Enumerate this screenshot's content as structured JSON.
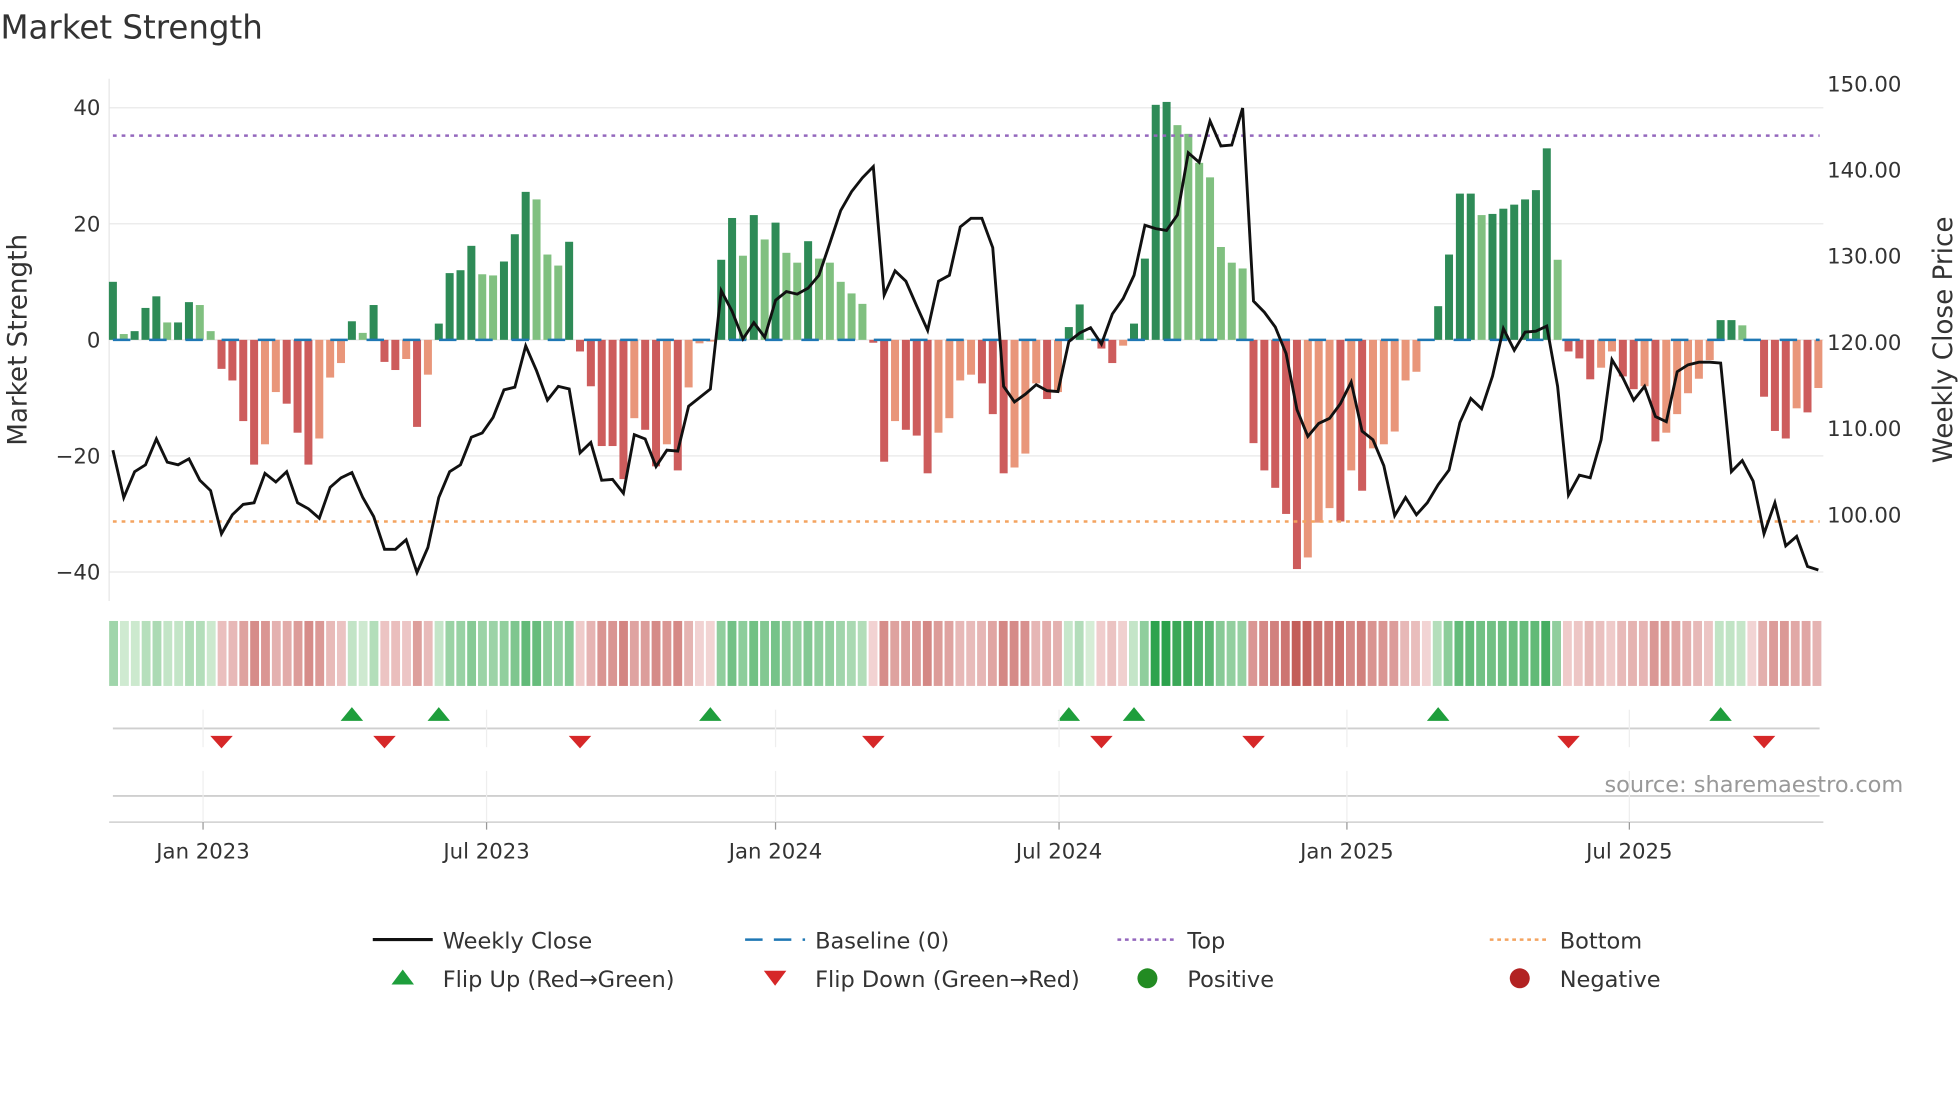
{
  "chart_data": {
    "type": "bar",
    "title": "Market Strength",
    "ylabel": "Market Strength",
    "y2label": "Weekly Close Price",
    "ylim": [
      -45,
      45
    ],
    "y2lim": [
      90,
      150.6
    ],
    "yticks": [
      40,
      20,
      0,
      -20,
      -40
    ],
    "ytick_labels": [
      "40",
      "20",
      "0",
      "−20",
      "−40"
    ],
    "y2ticks": [
      150,
      140,
      130,
      120,
      110,
      100
    ],
    "y2tick_labels": [
      "150.00",
      "140.00",
      "130.00",
      "120.00",
      "110.00",
      "100.00"
    ],
    "x_unit": "week index",
    "xticks": [
      8.3,
      34.4,
      61.0,
      87.1,
      113.6,
      139.6
    ],
    "xtick_labels": [
      "Jan 2023",
      "Jul 2023",
      "Jan 2024",
      "Jul 2024",
      "Jan 2025",
      "Jul 2025"
    ],
    "top_level": 35.2,
    "bottom_level": -31.3,
    "baseline": 0,
    "strength": [
      10,
      1,
      1.5,
      5.5,
      7.5,
      3,
      3,
      6.5,
      6,
      1.5,
      -5,
      -7,
      -14,
      -21.5,
      -18,
      -9,
      -11,
      -16,
      -21.5,
      -17,
      -6.5,
      -4,
      3.2,
      1.2,
      6,
      -3.8,
      -5.2,
      -3.3,
      -15,
      -6,
      2.8,
      11.5,
      12,
      16.2,
      11.3,
      11.1,
      13.5,
      18.2,
      25.5,
      24.2,
      14.7,
      12.8,
      16.9,
      -2,
      -8,
      -18.3,
      -18.3,
      -24,
      -13.5,
      -15.5,
      -21.8,
      -18,
      -22.5,
      -8.2,
      -0.6,
      -0.3,
      13.8,
      21,
      14.5,
      21.5,
      17.3,
      20.2,
      15,
      13.3,
      17,
      14,
      13.3,
      10,
      8,
      6.2,
      -0.5,
      -21,
      -14,
      -15.5,
      -16.5,
      -23,
      -16,
      -13.5,
      -7,
      -6,
      -7.5,
      -12.8,
      -23,
      -22,
      -19.6,
      -7.5,
      -10.2,
      -9,
      2.2,
      6.1,
      0.2,
      -1.5,
      -4,
      -1,
      2.8,
      14,
      40.5,
      41,
      37,
      35.5,
      30.5,
      28,
      16,
      13.3,
      12.3,
      -17.8,
      -22.5,
      -25.5,
      -30,
      -39.5,
      -37.5,
      -31.5,
      -29,
      -31.3,
      -22.5,
      -26,
      -18.7,
      -18,
      -15.8,
      -7,
      -5.5,
      -0.2,
      5.8,
      14.7,
      25.2,
      25.2,
      21.5,
      21.7,
      22.6,
      23.3,
      24.2,
      25.8,
      33,
      13.8,
      -2,
      -3.2,
      -6.8,
      -4.8,
      -2,
      -6.3,
      -8.5,
      -8,
      -17.5,
      -16,
      -12.8,
      -9.2,
      -6.7,
      -3.5,
      3.4,
      3.4,
      2.5,
      -0.2,
      -9.8,
      -15.7,
      -17,
      -11.8,
      -12.5,
      -8.3
    ],
    "weekly_close": [
      107.5,
      102,
      105,
      105.8,
      108.8,
      106.1,
      105.8,
      106.5,
      104,
      102.8,
      97.8,
      100,
      101.2,
      101.4,
      104.8,
      103.8,
      105,
      101.4,
      100.7,
      99.6,
      103.2,
      104.3,
      104.9,
      102,
      99.8,
      96,
      96,
      97.1,
      93.3,
      96.2,
      102,
      105,
      105.8,
      109,
      109.5,
      111.3,
      114.5,
      114.8,
      119.6,
      116.7,
      113.3,
      114.9,
      114.6,
      107.2,
      108.4,
      104,
      104.1,
      102.5,
      109.3,
      108.8,
      105.6,
      107.5,
      107.4,
      112.6,
      113.6,
      114.6,
      126,
      123.6,
      120.4,
      122.3,
      120.6,
      124.9,
      125.9,
      125.6,
      126.3,
      127.8,
      131.5,
      135.3,
      137.5,
      139.1,
      140.4,
      125.5,
      128.3,
      127.1,
      124.2,
      121.4,
      127.1,
      127.8,
      133.4,
      134.4,
      134.4,
      131,
      114.9,
      113.1,
      114,
      115.1,
      114.4,
      114.3,
      120.1,
      121.1,
      121.7,
      119.8,
      123.3,
      125.1,
      127.8,
      133.6,
      133.2,
      133,
      134.8,
      142,
      140.9,
      145.7,
      142.8,
      142.9,
      147.2,
      124.8,
      123.5,
      121.8,
      118.7,
      112.2,
      109.1,
      110.6,
      111.2,
      112.9,
      115.4,
      109.7,
      108.7,
      105.7,
      99.9,
      102,
      100,
      101.4,
      103.5,
      105.2,
      110.7,
      113.5,
      112.3,
      116.1,
      121.6,
      119.1,
      121.2,
      121.3,
      121.9,
      114.9,
      102.3,
      104.6,
      104.3,
      108.7,
      118,
      115.9,
      113.3,
      114.9,
      111.4,
      110.8,
      116.6,
      117.4,
      117.7,
      117.7,
      117.6,
      105,
      106.3,
      103.9,
      97.8,
      101.4,
      96.4,
      97.5,
      94,
      93.6
    ],
    "flip_up_weeks": [
      22,
      30,
      55,
      88,
      94,
      122,
      148
    ],
    "flip_down_weeks": [
      10,
      25,
      43,
      70,
      91,
      105,
      134,
      152
    ],
    "legend": {
      "placement": "bottom-center",
      "entries": [
        {
          "label": "Weekly Close",
          "kind": "line"
        },
        {
          "label": "Baseline (0)",
          "kind": "dashed"
        },
        {
          "label": "Top",
          "kind": "dotted-top"
        },
        {
          "label": "Bottom",
          "kind": "dotted-bottom"
        },
        {
          "label": "Flip Up (Red→Green)",
          "kind": "tri-up"
        },
        {
          "label": "Flip Down (Green→Red)",
          "kind": "tri-down"
        },
        {
          "label": "Positive",
          "kind": "dot-pos"
        },
        {
          "label": "Negative",
          "kind": "dot-neg"
        }
      ]
    },
    "source": "source: sharemaestro.com",
    "colors": {
      "pos_strong": "#2e8b57",
      "pos_weak": "#80c080",
      "neg_strong": "#cd5c5c",
      "neg_weak": "#e9967a",
      "baseline": "#1f77b4",
      "top": "#9467bd",
      "bottom": "#f4a460",
      "price": "#111111",
      "flip_up": "#1e9e3c",
      "flip_down": "#d62728",
      "positive": "#228b22",
      "negative": "#b22222"
    }
  }
}
